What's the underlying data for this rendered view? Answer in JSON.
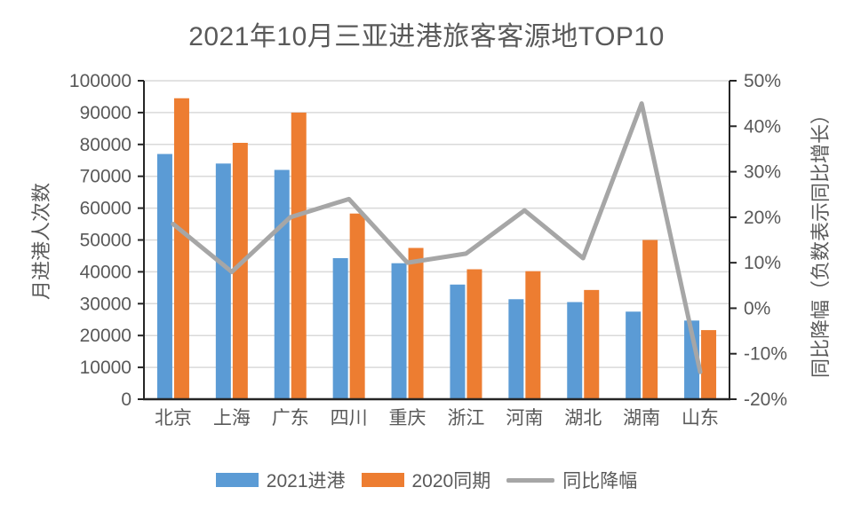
{
  "legend": [
    {
      "label": "2021进港",
      "color": "#5B9BD5",
      "marker": "bar"
    },
    {
      "label": "2020同期",
      "color": "#ED7D31",
      "marker": "bar"
    },
    {
      "label": "同比降幅",
      "color": "#A6A6A6",
      "marker": "line"
    }
  ],
  "chart_data": {
    "type": "combo-bar-line",
    "title": "2021年10月三亚进港旅客客源地TOP10",
    "categories": [
      "北京",
      "上海",
      "广东",
      "四川",
      "重庆",
      "浙江",
      "河南",
      "湖北",
      "湖南",
      "山东"
    ],
    "series": [
      {
        "name": "2021进港",
        "type": "bar",
        "axis": "left",
        "color": "#5B9BD5",
        "values": [
          77000,
          74000,
          72000,
          44300,
          42700,
          36000,
          31400,
          30500,
          27500,
          24700
        ]
      },
      {
        "name": "2020同期",
        "type": "bar",
        "axis": "left",
        "color": "#ED7D31",
        "values": [
          94500,
          80500,
          90000,
          58300,
          47500,
          40800,
          40200,
          34300,
          50000,
          21700
        ]
      },
      {
        "name": "同比降幅",
        "type": "line",
        "axis": "right",
        "color": "#A6A6A6",
        "values_percent": [
          18.5,
          8,
          20,
          24,
          10,
          12,
          21.5,
          11,
          45,
          -14
        ]
      }
    ],
    "left_axis": {
      "title": "月进港人次数",
      "min": 0,
      "max": 100000,
      "step": 10000
    },
    "right_axis": {
      "title": "同比降幅（负数表示同比增长）",
      "min": -20,
      "max": 50,
      "step": 10,
      "unit": "%"
    },
    "grid": true,
    "legend_position": "bottom",
    "colors": {
      "axis_text": "#595959",
      "axis_line": "#262626",
      "gridline": "#D9D9D9",
      "background": "#FFFFFF"
    }
  }
}
